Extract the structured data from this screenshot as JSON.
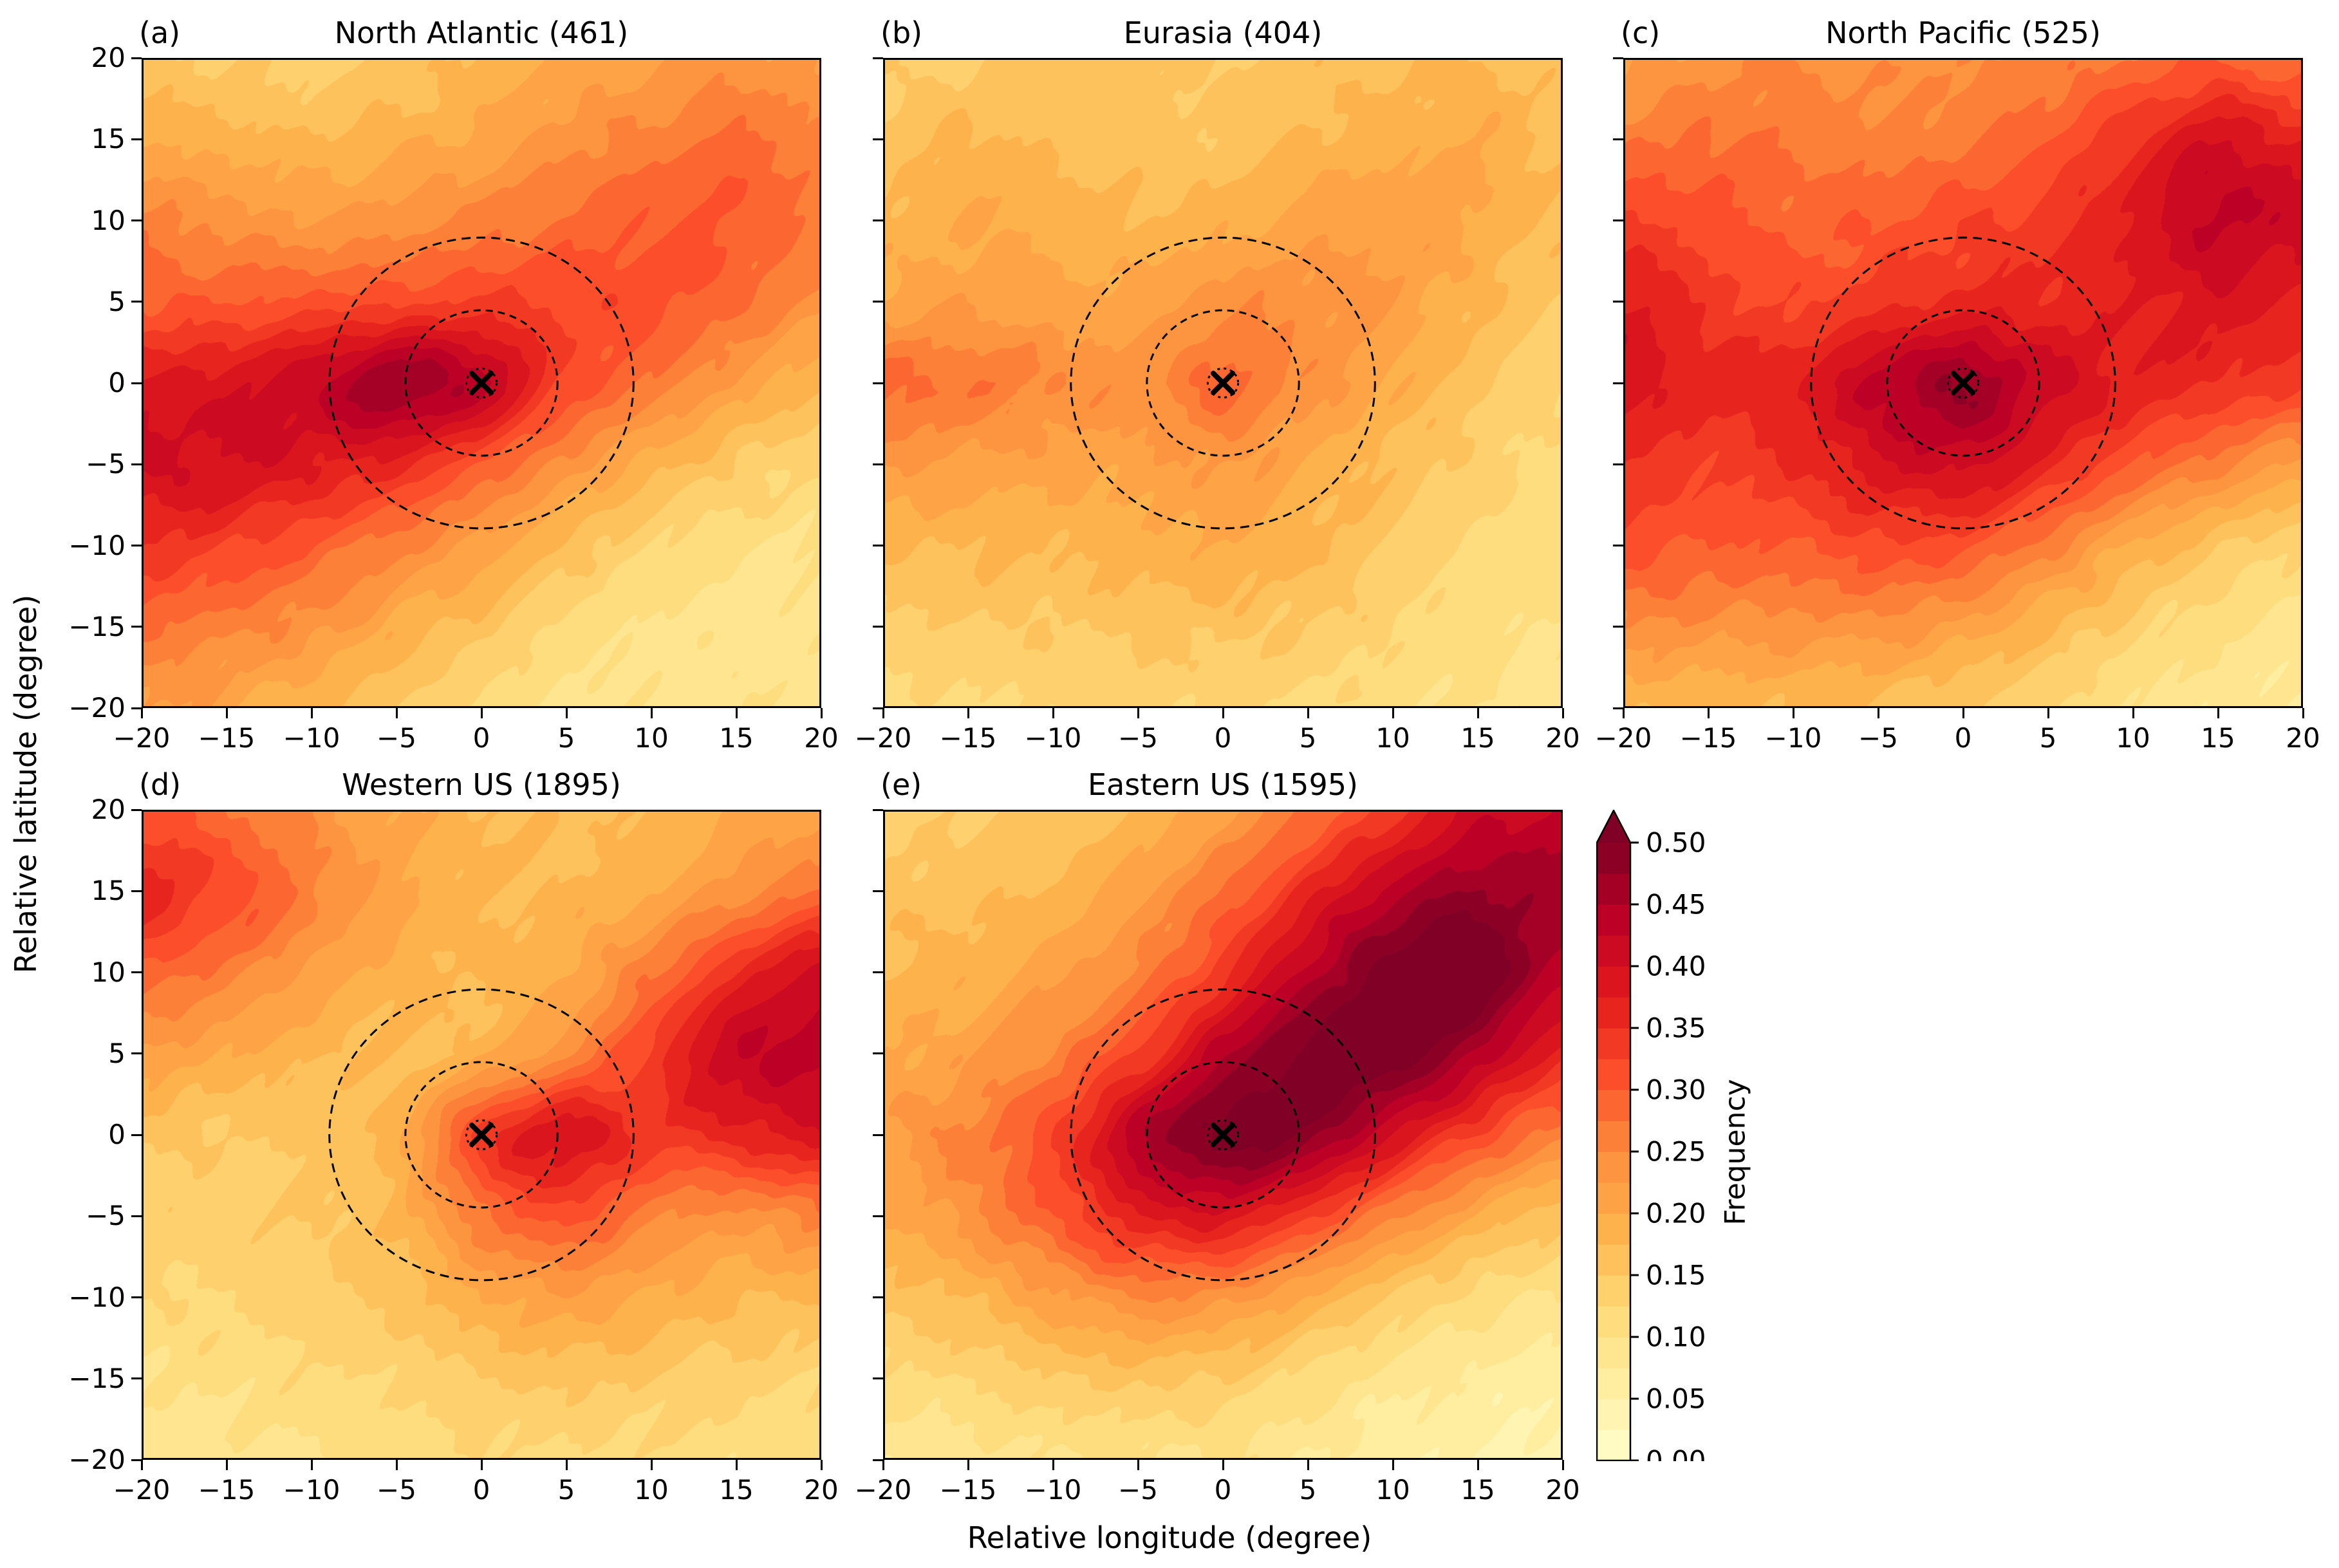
{
  "figure": {
    "xlabel": "Relative longitude (degree)",
    "ylabel": "Relative latitude (degree)",
    "axis": {
      "range": [
        -20,
        20
      ],
      "tick_values": [
        -20,
        -15,
        -10,
        -5,
        0,
        5,
        10,
        15,
        20
      ],
      "tick_labels": [
        "−20",
        "−15",
        "−10",
        "−5",
        "0",
        "5",
        "10",
        "15",
        "20"
      ]
    },
    "levels": {
      "min": 0.0,
      "max": 0.5,
      "step": 0.025,
      "extend": "max"
    },
    "colorbar": {
      "label": "Frequency",
      "tick_labels": [
        "0.00",
        "0.05",
        "0.10",
        "0.15",
        "0.20",
        "0.25",
        "0.30",
        "0.35",
        "0.40",
        "0.45",
        "0.50"
      ]
    },
    "reference_circles": {
      "radii_degrees": [
        4.5,
        9.0
      ],
      "marker_circle_radius_degrees": 0.9,
      "center_marker": "x",
      "line_style": "dashed",
      "color": "#000000"
    }
  },
  "colors": {
    "colormap": "YlOrRd",
    "colormap_anchors": [
      "#ffffcc",
      "#ffeda0",
      "#fed976",
      "#feb24c",
      "#fd8d3c",
      "#fc4e2a",
      "#e31a1c",
      "#bd0026",
      "#800026"
    ],
    "over_color": "#800026",
    "background": "#ffffff",
    "axes_color": "#000000"
  },
  "chart_data": [
    {
      "id": "a",
      "label": "(a)",
      "region": "North Atlantic",
      "count": 461,
      "title": "North Atlantic (461)",
      "type": "heatmap",
      "x_range": [
        -20,
        20
      ],
      "y_range": [
        -20,
        20
      ],
      "grid_x": [
        -20,
        -15,
        -10,
        -5,
        0,
        5,
        10,
        15,
        20
      ],
      "grid_y": [
        20,
        15,
        10,
        5,
        0,
        -5,
        -10,
        -15,
        -20
      ],
      "frequency_values": [
        [
          0.16,
          0.15,
          0.14,
          0.16,
          0.18,
          0.2,
          0.22,
          0.24,
          0.22
        ],
        [
          0.2,
          0.19,
          0.18,
          0.19,
          0.21,
          0.24,
          0.26,
          0.28,
          0.26
        ],
        [
          0.26,
          0.24,
          0.23,
          0.24,
          0.26,
          0.28,
          0.3,
          0.3,
          0.27
        ],
        [
          0.3,
          0.3,
          0.31,
          0.32,
          0.33,
          0.32,
          0.31,
          0.28,
          0.24
        ],
        [
          0.38,
          0.39,
          0.42,
          0.47,
          0.43,
          0.32,
          0.27,
          0.22,
          0.18
        ],
        [
          0.4,
          0.4,
          0.38,
          0.36,
          0.3,
          0.24,
          0.19,
          0.15,
          0.13
        ],
        [
          0.35,
          0.33,
          0.3,
          0.26,
          0.22,
          0.17,
          0.13,
          0.11,
          0.1
        ],
        [
          0.28,
          0.26,
          0.24,
          0.2,
          0.16,
          0.12,
          0.1,
          0.09,
          0.09
        ],
        [
          0.23,
          0.21,
          0.18,
          0.15,
          0.12,
          0.1,
          0.09,
          0.09,
          0.1
        ]
      ]
    },
    {
      "id": "b",
      "label": "(b)",
      "region": "Eurasia",
      "count": 404,
      "title": "Eurasia (404)",
      "type": "heatmap",
      "x_range": [
        -20,
        20
      ],
      "y_range": [
        -20,
        20
      ],
      "grid_x": [
        -20,
        -15,
        -10,
        -5,
        0,
        5,
        10,
        15,
        20
      ],
      "grid_y": [
        20,
        15,
        10,
        5,
        0,
        -5,
        -10,
        -15,
        -20
      ],
      "frequency_values": [
        [
          0.14,
          0.15,
          0.16,
          0.16,
          0.15,
          0.16,
          0.17,
          0.18,
          0.16
        ],
        [
          0.16,
          0.18,
          0.17,
          0.16,
          0.16,
          0.18,
          0.19,
          0.2,
          0.17
        ],
        [
          0.18,
          0.2,
          0.19,
          0.18,
          0.19,
          0.21,
          0.22,
          0.2,
          0.17
        ],
        [
          0.21,
          0.22,
          0.21,
          0.21,
          0.24,
          0.24,
          0.22,
          0.18,
          0.15
        ],
        [
          0.28,
          0.27,
          0.25,
          0.24,
          0.28,
          0.24,
          0.2,
          0.16,
          0.13
        ],
        [
          0.23,
          0.22,
          0.21,
          0.21,
          0.23,
          0.2,
          0.17,
          0.14,
          0.12
        ],
        [
          0.18,
          0.18,
          0.18,
          0.19,
          0.2,
          0.18,
          0.15,
          0.12,
          0.11
        ],
        [
          0.14,
          0.15,
          0.15,
          0.16,
          0.16,
          0.15,
          0.13,
          0.11,
          0.1
        ],
        [
          0.12,
          0.12,
          0.13,
          0.13,
          0.13,
          0.12,
          0.11,
          0.1,
          0.09
        ]
      ]
    },
    {
      "id": "c",
      "label": "(c)",
      "region": "North Pacific",
      "count": 525,
      "title": "North Pacific (525)",
      "type": "heatmap",
      "x_range": [
        -20,
        20
      ],
      "y_range": [
        -20,
        20
      ],
      "grid_x": [
        -20,
        -15,
        -10,
        -5,
        0,
        5,
        10,
        15,
        20
      ],
      "grid_y": [
        20,
        15,
        10,
        5,
        0,
        -5,
        -10,
        -15,
        -20
      ],
      "frequency_values": [
        [
          0.22,
          0.24,
          0.25,
          0.24,
          0.25,
          0.26,
          0.28,
          0.3,
          0.28
        ],
        [
          0.27,
          0.28,
          0.27,
          0.26,
          0.27,
          0.3,
          0.35,
          0.4,
          0.37
        ],
        [
          0.33,
          0.31,
          0.29,
          0.3,
          0.32,
          0.34,
          0.38,
          0.43,
          0.41
        ],
        [
          0.38,
          0.34,
          0.32,
          0.34,
          0.36,
          0.36,
          0.37,
          0.39,
          0.37
        ],
        [
          0.39,
          0.36,
          0.37,
          0.43,
          0.47,
          0.41,
          0.37,
          0.35,
          0.33
        ],
        [
          0.35,
          0.33,
          0.35,
          0.39,
          0.41,
          0.36,
          0.3,
          0.26,
          0.22
        ],
        [
          0.31,
          0.3,
          0.3,
          0.32,
          0.31,
          0.26,
          0.2,
          0.16,
          0.13
        ],
        [
          0.25,
          0.24,
          0.24,
          0.24,
          0.22,
          0.18,
          0.14,
          0.11,
          0.09
        ],
        [
          0.18,
          0.18,
          0.18,
          0.17,
          0.15,
          0.13,
          0.1,
          0.08,
          0.07
        ]
      ]
    },
    {
      "id": "d",
      "label": "(d)",
      "region": "Western US",
      "count": 1895,
      "title": "Western US (1895)",
      "type": "heatmap",
      "x_range": [
        -20,
        20
      ],
      "y_range": [
        -20,
        20
      ],
      "grid_x": [
        -20,
        -15,
        -10,
        -5,
        0,
        5,
        10,
        15,
        20
      ],
      "grid_y": [
        20,
        15,
        10,
        5,
        0,
        -5,
        -10,
        -15,
        -20
      ],
      "frequency_values": [
        [
          0.31,
          0.28,
          0.24,
          0.2,
          0.18,
          0.17,
          0.18,
          0.2,
          0.22
        ],
        [
          0.36,
          0.32,
          0.26,
          0.21,
          0.18,
          0.18,
          0.2,
          0.24,
          0.28
        ],
        [
          0.29,
          0.26,
          0.22,
          0.19,
          0.18,
          0.2,
          0.27,
          0.35,
          0.41
        ],
        [
          0.22,
          0.2,
          0.18,
          0.17,
          0.19,
          0.25,
          0.33,
          0.42,
          0.43
        ],
        [
          0.16,
          0.15,
          0.16,
          0.19,
          0.33,
          0.39,
          0.34,
          0.36,
          0.39
        ],
        [
          0.14,
          0.14,
          0.15,
          0.18,
          0.27,
          0.31,
          0.26,
          0.24,
          0.26
        ],
        [
          0.12,
          0.13,
          0.14,
          0.16,
          0.2,
          0.22,
          0.2,
          0.18,
          0.18
        ],
        [
          0.1,
          0.11,
          0.12,
          0.13,
          0.15,
          0.16,
          0.15,
          0.14,
          0.13
        ],
        [
          0.08,
          0.09,
          0.1,
          0.11,
          0.12,
          0.12,
          0.12,
          0.11,
          0.1
        ]
      ]
    },
    {
      "id": "e",
      "label": "(e)",
      "region": "Eastern US",
      "count": 1595,
      "title": "Eastern US (1595)",
      "type": "heatmap",
      "x_range": [
        -20,
        20
      ],
      "y_range": [
        -20,
        20
      ],
      "grid_x": [
        -20,
        -15,
        -10,
        -5,
        0,
        5,
        10,
        15,
        20
      ],
      "grid_y": [
        20,
        15,
        10,
        5,
        0,
        -5,
        -10,
        -15,
        -20
      ],
      "frequency_values": [
        [
          0.14,
          0.15,
          0.16,
          0.18,
          0.22,
          0.28,
          0.34,
          0.41,
          0.43
        ],
        [
          0.16,
          0.17,
          0.18,
          0.22,
          0.28,
          0.36,
          0.44,
          0.48,
          0.46
        ],
        [
          0.18,
          0.19,
          0.22,
          0.26,
          0.34,
          0.44,
          0.51,
          0.52,
          0.44
        ],
        [
          0.2,
          0.22,
          0.26,
          0.33,
          0.44,
          0.51,
          0.52,
          0.45,
          0.36
        ],
        [
          0.22,
          0.26,
          0.32,
          0.44,
          0.51,
          0.49,
          0.4,
          0.32,
          0.26
        ],
        [
          0.2,
          0.24,
          0.3,
          0.37,
          0.39,
          0.33,
          0.26,
          0.2,
          0.16
        ],
        [
          0.16,
          0.18,
          0.22,
          0.25,
          0.24,
          0.2,
          0.15,
          0.12,
          0.1
        ],
        [
          0.12,
          0.13,
          0.15,
          0.16,
          0.15,
          0.12,
          0.09,
          0.07,
          0.06
        ],
        [
          0.08,
          0.09,
          0.1,
          0.1,
          0.1,
          0.08,
          0.06,
          0.05,
          0.04
        ]
      ]
    }
  ]
}
